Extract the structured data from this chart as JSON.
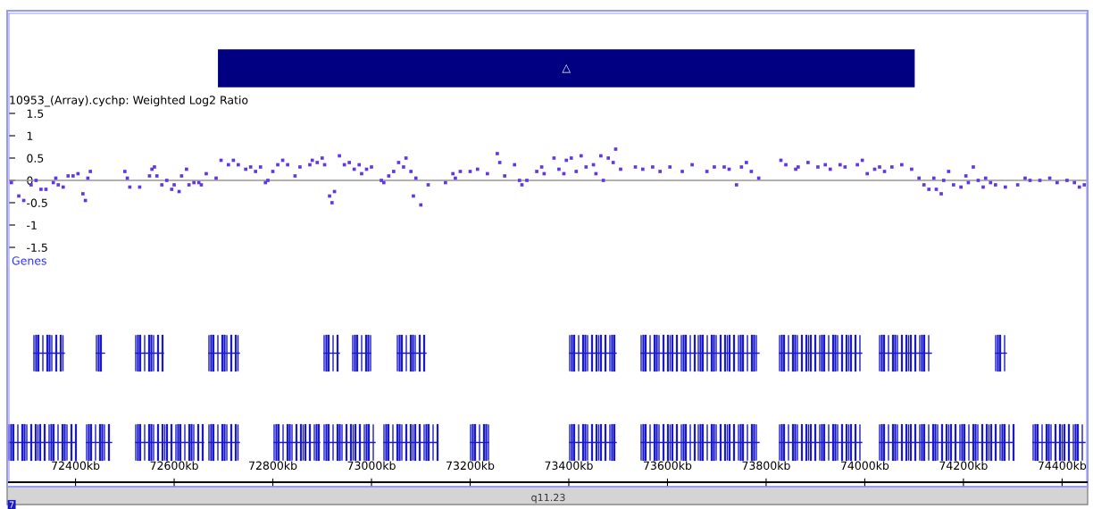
{
  "chart_data": {
    "type": "scatter",
    "title": "10953_(Array).cychp: Weighted Log2 Ratio",
    "x": [
      72270,
      72285,
      72295,
      72310,
      72320,
      72330,
      72340,
      72355,
      72360,
      72365,
      72375,
      72385,
      72395,
      72405,
      72415,
      72420,
      72425,
      72430,
      72500,
      72505,
      72510,
      72530,
      72550,
      72555,
      72560,
      72565,
      72575,
      72585,
      72595,
      72600,
      72610,
      72615,
      72625,
      72630,
      72640,
      72650,
      72655,
      72665,
      72685,
      72695,
      72710,
      72720,
      72730,
      72745,
      72755,
      72765,
      72775,
      72785,
      72790,
      72800,
      72810,
      72820,
      72830,
      72845,
      72855,
      72875,
      72880,
      72890,
      72900,
      72905,
      72915,
      72920,
      72925,
      72935,
      72945,
      72955,
      72965,
      72975,
      72980,
      72990,
      73000,
      73020,
      73025,
      73035,
      73045,
      73055,
      73065,
      73070,
      73080,
      73085,
      73090,
      73100,
      73115,
      73150,
      73165,
      73170,
      73180,
      73200,
      73215,
      73235,
      73255,
      73260,
      73270,
      73290,
      73300,
      73305,
      73315,
      73335,
      73345,
      73350,
      73370,
      73380,
      73390,
      73395,
      73405,
      73415,
      73425,
      73435,
      73450,
      73455,
      73465,
      73470,
      73480,
      73490,
      73495,
      73505,
      73535,
      73550,
      73570,
      73585,
      73605,
      73630,
      73650,
      73680,
      73695,
      73715,
      73725,
      73740,
      73750,
      73760,
      73770,
      73785,
      73830,
      73840,
      73860,
      73865,
      73885,
      73905,
      73920,
      73930,
      73950,
      73960,
      73985,
      73995,
      74005,
      74020,
      74030,
      74040,
      74055,
      74075,
      74095,
      74110,
      74120,
      74130,
      74140,
      74145,
      74155,
      74160,
      74170,
      74180,
      74195,
      74205,
      74210,
      74220,
      74230,
      74240,
      74245,
      74255,
      74265,
      74285,
      74310,
      74325,
      74335,
      74355,
      74375,
      74390,
      74410,
      74425,
      74435,
      74445
    ],
    "values": [
      -0.05,
      -0.35,
      -0.45,
      -0.1,
      0,
      -0.2,
      -0.2,
      -0.05,
      0.05,
      -0.1,
      -0.15,
      0.1,
      0.1,
      0.15,
      -0.3,
      -0.45,
      0.05,
      0.2,
      0.2,
      0.05,
      -0.15,
      -0.15,
      0.1,
      0.25,
      0.3,
      0.1,
      -0.1,
      0,
      -0.2,
      -0.1,
      -0.25,
      0.1,
      0.25,
      -0.1,
      -0.05,
      -0.05,
      -0.1,
      0.15,
      0.05,
      0.45,
      0.35,
      0.45,
      0.35,
      0.25,
      0.3,
      0.2,
      0.3,
      -0.05,
      0,
      0.2,
      0.35,
      0.45,
      0.35,
      0.1,
      0.3,
      0.35,
      0.45,
      0.4,
      0.5,
      0.35,
      -0.35,
      -0.5,
      -0.25,
      0.55,
      0.35,
      0.4,
      0.25,
      0.35,
      0.15,
      0.25,
      0.3,
      0,
      -0.05,
      0.1,
      0.2,
      0.4,
      0.3,
      0.5,
      0.2,
      -0.35,
      0.05,
      -0.55,
      -0.1,
      -0.05,
      0.15,
      0.05,
      0.2,
      0.2,
      0.25,
      0.15,
      0.6,
      0.4,
      0.1,
      0.35,
      0,
      -0.1,
      0,
      0.2,
      0.3,
      0.15,
      0.5,
      0.25,
      0.15,
      0.45,
      0.5,
      0.2,
      0.55,
      0.3,
      0.35,
      0.15,
      0.55,
      0,
      0.5,
      0.4,
      0.7,
      0.25,
      0.3,
      0.25,
      0.3,
      0.2,
      0.3,
      0.2,
      0.35,
      0.2,
      0.3,
      0.3,
      0.25,
      -0.1,
      0.3,
      0.4,
      0.2,
      0.05,
      0.45,
      0.35,
      0.25,
      0.3,
      0.4,
      0.3,
      0.35,
      0.25,
      0.35,
      0.3,
      0.35,
      0.45,
      0.15,
      0.25,
      0.3,
      0.2,
      0.3,
      0.35,
      0.25,
      0.05,
      -0.1,
      -0.2,
      0.05,
      -0.2,
      -0.3,
      0,
      0.2,
      -0.1,
      -0.15,
      0.1,
      -0.05,
      0.3,
      0,
      -0.15,
      0.05,
      -0.05,
      -0.1,
      -0.15,
      -0.1,
      0.05,
      0,
      0,
      0.05,
      -0.05,
      0,
      -0.05,
      -0.15,
      -0.1
    ],
    "color": "#6236e8",
    "marker": "square",
    "xlim": [
      72265,
      74450
    ],
    "ylim": [
      -6.76,
      3.74
    ],
    "xticks": [
      {
        "value": 72400,
        "label": "72400kb"
      },
      {
        "value": 72600,
        "label": "72600kb"
      },
      {
        "value": 72800,
        "label": "72800kb"
      },
      {
        "value": 73000,
        "label": "73000kb"
      },
      {
        "value": 73200,
        "label": "73200kb"
      },
      {
        "value": 73400,
        "label": "73400kb"
      },
      {
        "value": 73600,
        "label": "73600kb"
      },
      {
        "value": 73800,
        "label": "73800kb"
      },
      {
        "value": 74000,
        "label": "74000kb"
      },
      {
        "value": 74200,
        "label": "74200kb"
      },
      {
        "value": 74400,
        "label": "74400kb"
      }
    ],
    "yticks": [
      1.5,
      1,
      0.5,
      0,
      {
        "value": -0.5,
        "label": "-0.5"
      },
      {
        "value": -1,
        "label": "-1"
      },
      {
        "value": -1.5,
        "label": "-1.5"
      }
    ],
    "ref_lines": [
      {
        "axis": "y",
        "value": 0,
        "color": "#999999"
      }
    ],
    "bands": [
      {
        "axis": "x",
        "from": 72690,
        "to": 74100,
        "label": "△",
        "color": "#000080"
      }
    ],
    "annotations": [
      "Genes",
      "q11.23",
      "7"
    ],
    "grid": false,
    "legend": false
  }
}
